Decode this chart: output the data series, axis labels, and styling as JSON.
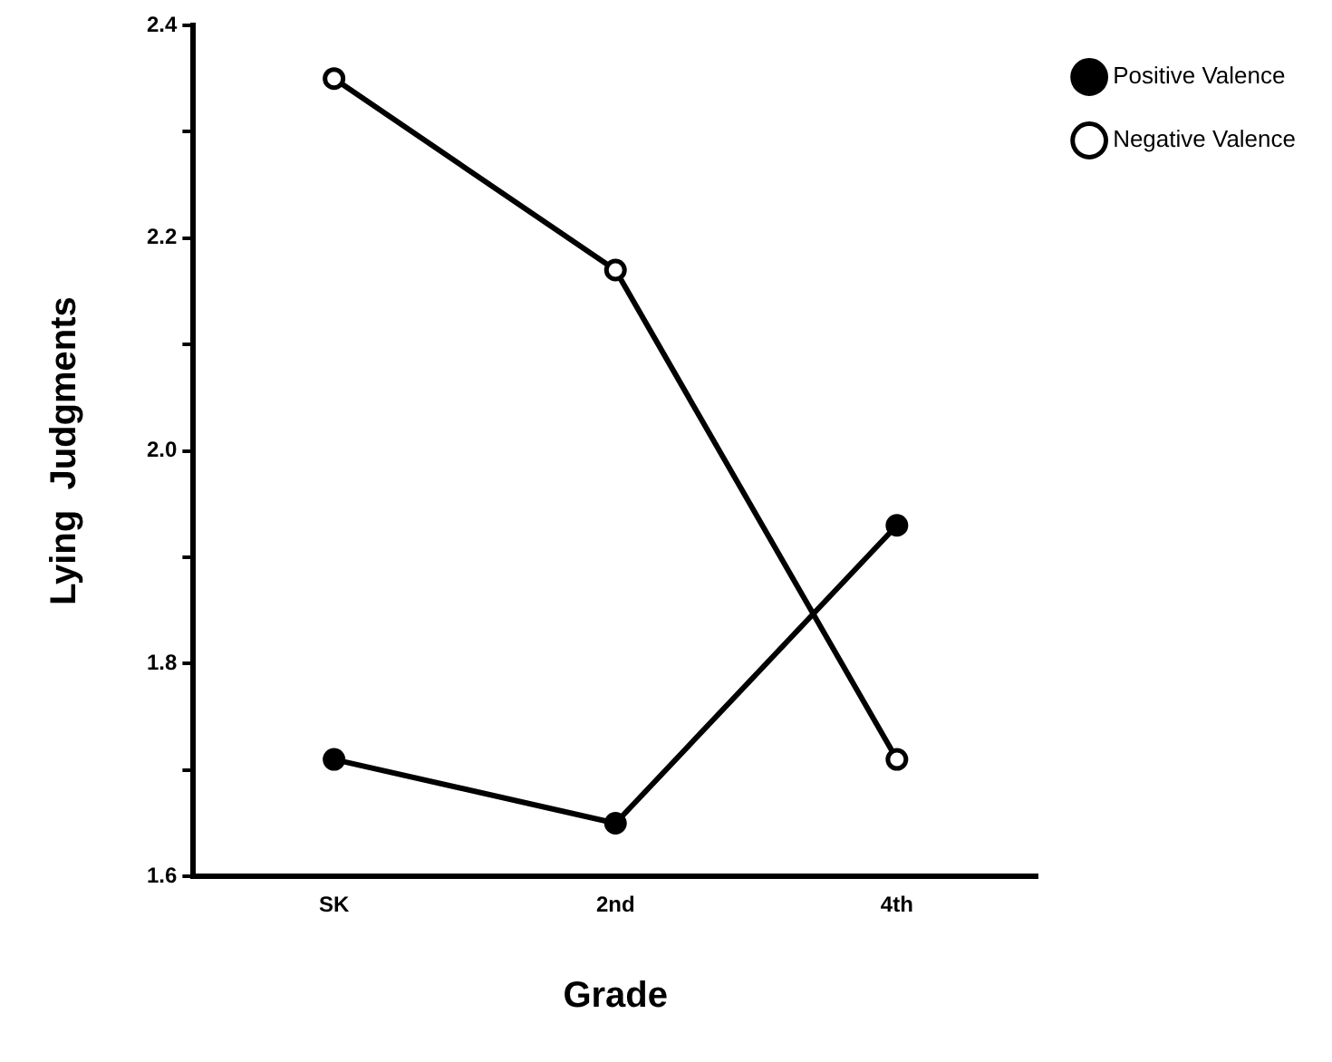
{
  "chart_data": {
    "type": "line",
    "xlabel": "Grade",
    "ylabel": "Lying  Judgments",
    "categories": [
      "SK",
      "2nd",
      "4th"
    ],
    "series": [
      {
        "name": "Positive Valence",
        "color": "#000000",
        "values": [
          1.71,
          1.65,
          1.93
        ]
      },
      {
        "name": "Negative Valence",
        "color": "#000000",
        "values": [
          2.35,
          2.17,
          1.71
        ]
      }
    ],
    "ylim": [
      1.6,
      2.4
    ],
    "yticks": [
      1.6,
      {
        "value": 1.7,
        "label": null
      },
      1.8,
      {
        "value": 1.9,
        "label": null
      },
      {
        "value": 2,
        "label": "2.0"
      },
      {
        "value": 2.1,
        "label": null
      },
      2.2,
      {
        "value": 2.3,
        "label": null
      },
      2.4
    ],
    "grid": false,
    "legend": "top right",
    "marker": "circle",
    "line_style": "solid"
  }
}
